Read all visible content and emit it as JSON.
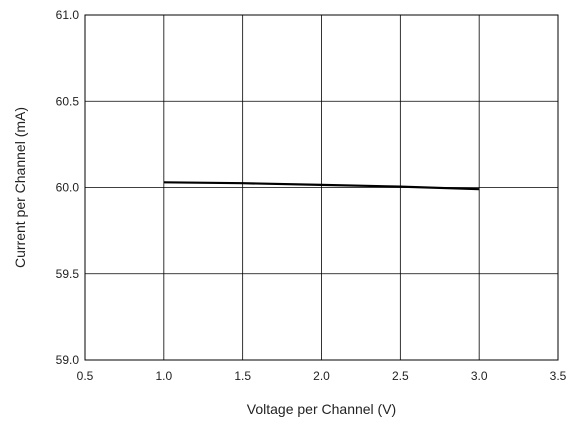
{
  "chart_data": {
    "type": "line",
    "title": "",
    "xlabel": "Voltage per Channel (V)",
    "ylabel": "Current per Channel (mA)",
    "xlim": [
      0.5,
      3.5
    ],
    "ylim": [
      59.0,
      61.0
    ],
    "xticks": [
      "0.5",
      "1.0",
      "1.5",
      "2.0",
      "2.5",
      "3.0",
      "3.5"
    ],
    "yticks": [
      "59.0",
      "59.5",
      "60.0",
      "60.5",
      "61.0"
    ],
    "grid": true,
    "legend": "none",
    "series": [
      {
        "color": "#000000",
        "x": [
          1.0,
          1.5,
          2.0,
          2.5,
          3.0
        ],
        "y": [
          60.03,
          60.025,
          60.015,
          60.005,
          59.99
        ]
      }
    ]
  }
}
